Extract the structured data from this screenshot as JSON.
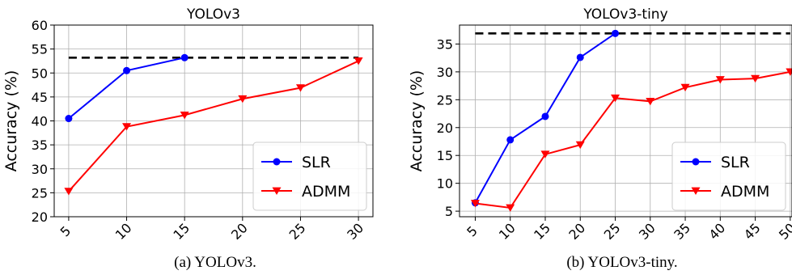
{
  "chart_data": [
    {
      "type": "line",
      "title": "YOLOv3",
      "caption": "(a) YOLOv3.",
      "xlabel": "",
      "ylabel": "Accuracy (%)",
      "xlim": [
        3.75,
        31.25
      ],
      "ylim": [
        20,
        60
      ],
      "xticks": [
        5,
        10,
        15,
        20,
        25,
        30
      ],
      "yticks": [
        20,
        25,
        30,
        35,
        40,
        45,
        50,
        55,
        60
      ],
      "grid": true,
      "legend_position": "lower-right",
      "reference_line": {
        "y": 53.2,
        "x_range": [
          5,
          30
        ],
        "style": "dashed",
        "color": "#000000"
      },
      "series": [
        {
          "name": "SLR",
          "color": "#0000ff",
          "marker": "circle",
          "x": [
            5,
            10,
            15
          ],
          "y": [
            40.5,
            50.5,
            53.2
          ]
        },
        {
          "name": "ADMM",
          "color": "#ff0000",
          "marker": "triangle-down",
          "x": [
            5,
            10,
            15,
            20,
            25,
            30
          ],
          "y": [
            25.3,
            38.8,
            41.2,
            44.6,
            46.9,
            52.5
          ]
        }
      ]
    },
    {
      "type": "line",
      "title": "YOLOv3-tiny",
      "caption": "(b) YOLOv3-tiny.",
      "xlabel": "",
      "ylabel": "Accuracy (%)",
      "xlim": [
        2.75,
        50.25
      ],
      "ylim": [
        4.0,
        38.4
      ],
      "xticks": [
        5,
        10,
        15,
        20,
        25,
        30,
        35,
        40,
        45,
        50
      ],
      "yticks": [
        5,
        10,
        15,
        20,
        25,
        30,
        35
      ],
      "grid": true,
      "legend_position": "lower-right",
      "reference_line": {
        "y": 36.9,
        "x_range": [
          5,
          50
        ],
        "style": "dashed",
        "color": "#000000"
      },
      "series": [
        {
          "name": "SLR",
          "color": "#0000ff",
          "marker": "circle",
          "x": [
            5,
            10,
            15,
            20,
            25
          ],
          "y": [
            6.5,
            17.8,
            22.0,
            32.6,
            36.9
          ]
        },
        {
          "name": "ADMM",
          "color": "#ff0000",
          "marker": "triangle-down",
          "x": [
            5,
            10,
            15,
            20,
            25,
            30,
            35,
            40,
            45,
            50
          ],
          "y": [
            6.4,
            5.6,
            15.2,
            16.9,
            25.3,
            24.7,
            27.2,
            28.6,
            28.8,
            30.0
          ]
        }
      ]
    }
  ]
}
